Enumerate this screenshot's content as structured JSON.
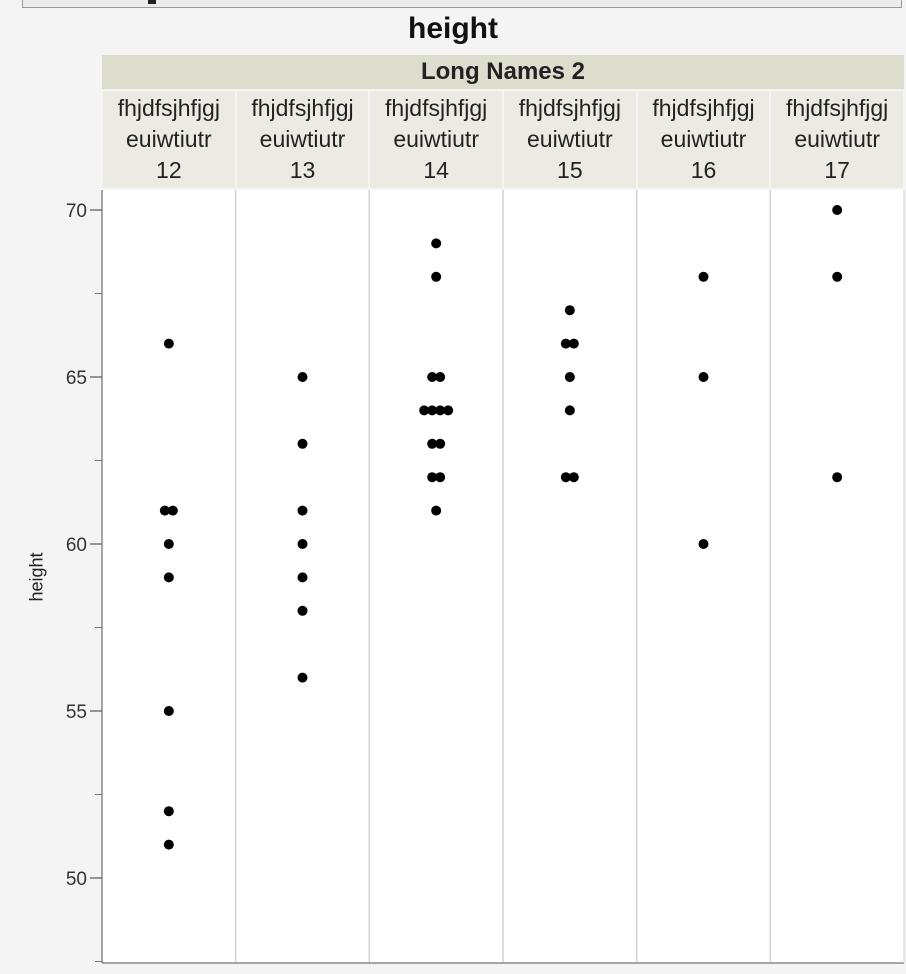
{
  "title": "height",
  "group_title": "Long Names 2",
  "colors": {
    "header_group": "#ddddce",
    "header_cat": "#ebebe4",
    "point": "#000000",
    "divider": "#d2d2d2"
  },
  "chart_data": {
    "type": "scatter",
    "subtype": "categorical-dot-plot",
    "title": "height",
    "group_label": "Long Names 2",
    "ylabel": "height",
    "xlabel": "",
    "ylim": [
      47.5,
      71
    ],
    "yticks": [
      50,
      55,
      60,
      65,
      70
    ],
    "grid": false,
    "categories": [
      {
        "line1": "fhjdfsjhfjgj",
        "line2": "euiwtiutr",
        "line3": "12",
        "values": [
          66,
          61,
          61,
          60,
          59,
          55,
          52,
          51
        ]
      },
      {
        "line1": "fhjdfsjhfjgj",
        "line2": "euiwtiutr",
        "line3": "13",
        "values": [
          65,
          63,
          61,
          60,
          59,
          58,
          56
        ]
      },
      {
        "line1": "fhjdfsjhfjgj",
        "line2": "euiwtiutr",
        "line3": "14",
        "values": [
          69,
          68,
          65,
          65,
          64,
          64,
          64,
          64,
          63,
          63,
          62,
          62,
          61
        ]
      },
      {
        "line1": "fhjdfsjhfjgj",
        "line2": "euiwtiutr",
        "line3": "15",
        "values": [
          67,
          66,
          66,
          65,
          64,
          62,
          62
        ]
      },
      {
        "line1": "fhjdfsjhfjgj",
        "line2": "euiwtiutr",
        "line3": "16",
        "values": [
          68,
          65,
          60
        ]
      },
      {
        "line1": "fhjdfsjhfjgj",
        "line2": "euiwtiutr",
        "line3": "17",
        "values": [
          70,
          68,
          62
        ]
      }
    ]
  }
}
